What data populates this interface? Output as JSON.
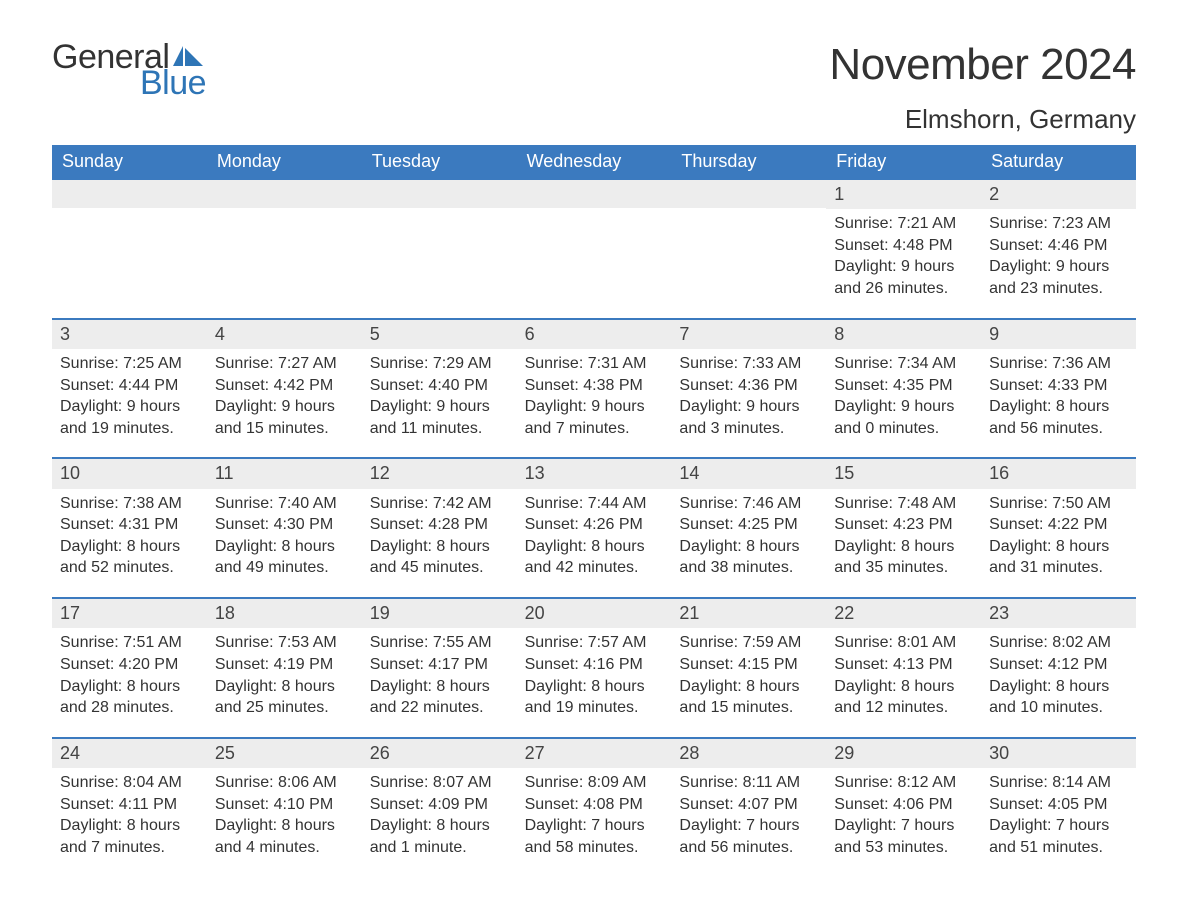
{
  "brand": {
    "word1": "General",
    "word2": "Blue",
    "word1_color": "#333333",
    "word2_color": "#2e75b6",
    "flag_color": "#2e75b6"
  },
  "title": "November 2024",
  "location": "Elmshorn, Germany",
  "colors": {
    "header_bg": "#3b7abf",
    "header_text": "#ffffff",
    "date_bar_bg": "#ededed",
    "week_rule": "#3b7abf",
    "body_text": "#333333",
    "page_bg": "#ffffff"
  },
  "font": {
    "family": "Arial, Helvetica, sans-serif",
    "title_size_pt": 33,
    "location_size_pt": 20,
    "dayhead_size_pt": 14,
    "cell_size_pt": 12,
    "date_size_pt": 14
  },
  "day_headers": [
    "Sunday",
    "Monday",
    "Tuesday",
    "Wednesday",
    "Thursday",
    "Friday",
    "Saturday"
  ],
  "labels": {
    "sunrise": "Sunrise:",
    "sunset": "Sunset:",
    "daylight": "Daylight:"
  },
  "weeks": [
    [
      {
        "blank": true
      },
      {
        "blank": true
      },
      {
        "blank": true
      },
      {
        "blank": true
      },
      {
        "blank": true
      },
      {
        "date": "1",
        "sunrise": "7:21 AM",
        "sunset": "4:48 PM",
        "daylight_l1": "9 hours",
        "daylight_l2": "and 26 minutes."
      },
      {
        "date": "2",
        "sunrise": "7:23 AM",
        "sunset": "4:46 PM",
        "daylight_l1": "9 hours",
        "daylight_l2": "and 23 minutes."
      }
    ],
    [
      {
        "date": "3",
        "sunrise": "7:25 AM",
        "sunset": "4:44 PM",
        "daylight_l1": "9 hours",
        "daylight_l2": "and 19 minutes."
      },
      {
        "date": "4",
        "sunrise": "7:27 AM",
        "sunset": "4:42 PM",
        "daylight_l1": "9 hours",
        "daylight_l2": "and 15 minutes."
      },
      {
        "date": "5",
        "sunrise": "7:29 AM",
        "sunset": "4:40 PM",
        "daylight_l1": "9 hours",
        "daylight_l2": "and 11 minutes."
      },
      {
        "date": "6",
        "sunrise": "7:31 AM",
        "sunset": "4:38 PM",
        "daylight_l1": "9 hours",
        "daylight_l2": "and 7 minutes."
      },
      {
        "date": "7",
        "sunrise": "7:33 AM",
        "sunset": "4:36 PM",
        "daylight_l1": "9 hours",
        "daylight_l2": "and 3 minutes."
      },
      {
        "date": "8",
        "sunrise": "7:34 AM",
        "sunset": "4:35 PM",
        "daylight_l1": "9 hours",
        "daylight_l2": "and 0 minutes."
      },
      {
        "date": "9",
        "sunrise": "7:36 AM",
        "sunset": "4:33 PM",
        "daylight_l1": "8 hours",
        "daylight_l2": "and 56 minutes."
      }
    ],
    [
      {
        "date": "10",
        "sunrise": "7:38 AM",
        "sunset": "4:31 PM",
        "daylight_l1": "8 hours",
        "daylight_l2": "and 52 minutes."
      },
      {
        "date": "11",
        "sunrise": "7:40 AM",
        "sunset": "4:30 PM",
        "daylight_l1": "8 hours",
        "daylight_l2": "and 49 minutes."
      },
      {
        "date": "12",
        "sunrise": "7:42 AM",
        "sunset": "4:28 PM",
        "daylight_l1": "8 hours",
        "daylight_l2": "and 45 minutes."
      },
      {
        "date": "13",
        "sunrise": "7:44 AM",
        "sunset": "4:26 PM",
        "daylight_l1": "8 hours",
        "daylight_l2": "and 42 minutes."
      },
      {
        "date": "14",
        "sunrise": "7:46 AM",
        "sunset": "4:25 PM",
        "daylight_l1": "8 hours",
        "daylight_l2": "and 38 minutes."
      },
      {
        "date": "15",
        "sunrise": "7:48 AM",
        "sunset": "4:23 PM",
        "daylight_l1": "8 hours",
        "daylight_l2": "and 35 minutes."
      },
      {
        "date": "16",
        "sunrise": "7:50 AM",
        "sunset": "4:22 PM",
        "daylight_l1": "8 hours",
        "daylight_l2": "and 31 minutes."
      }
    ],
    [
      {
        "date": "17",
        "sunrise": "7:51 AM",
        "sunset": "4:20 PM",
        "daylight_l1": "8 hours",
        "daylight_l2": "and 28 minutes."
      },
      {
        "date": "18",
        "sunrise": "7:53 AM",
        "sunset": "4:19 PM",
        "daylight_l1": "8 hours",
        "daylight_l2": "and 25 minutes."
      },
      {
        "date": "19",
        "sunrise": "7:55 AM",
        "sunset": "4:17 PM",
        "daylight_l1": "8 hours",
        "daylight_l2": "and 22 minutes."
      },
      {
        "date": "20",
        "sunrise": "7:57 AM",
        "sunset": "4:16 PM",
        "daylight_l1": "8 hours",
        "daylight_l2": "and 19 minutes."
      },
      {
        "date": "21",
        "sunrise": "7:59 AM",
        "sunset": "4:15 PM",
        "daylight_l1": "8 hours",
        "daylight_l2": "and 15 minutes."
      },
      {
        "date": "22",
        "sunrise": "8:01 AM",
        "sunset": "4:13 PM",
        "daylight_l1": "8 hours",
        "daylight_l2": "and 12 minutes."
      },
      {
        "date": "23",
        "sunrise": "8:02 AM",
        "sunset": "4:12 PM",
        "daylight_l1": "8 hours",
        "daylight_l2": "and 10 minutes."
      }
    ],
    [
      {
        "date": "24",
        "sunrise": "8:04 AM",
        "sunset": "4:11 PM",
        "daylight_l1": "8 hours",
        "daylight_l2": "and 7 minutes."
      },
      {
        "date": "25",
        "sunrise": "8:06 AM",
        "sunset": "4:10 PM",
        "daylight_l1": "8 hours",
        "daylight_l2": "and 4 minutes."
      },
      {
        "date": "26",
        "sunrise": "8:07 AM",
        "sunset": "4:09 PM",
        "daylight_l1": "8 hours",
        "daylight_l2": "and 1 minute."
      },
      {
        "date": "27",
        "sunrise": "8:09 AM",
        "sunset": "4:08 PM",
        "daylight_l1": "7 hours",
        "daylight_l2": "and 58 minutes."
      },
      {
        "date": "28",
        "sunrise": "8:11 AM",
        "sunset": "4:07 PM",
        "daylight_l1": "7 hours",
        "daylight_l2": "and 56 minutes."
      },
      {
        "date": "29",
        "sunrise": "8:12 AM",
        "sunset": "4:06 PM",
        "daylight_l1": "7 hours",
        "daylight_l2": "and 53 minutes."
      },
      {
        "date": "30",
        "sunrise": "8:14 AM",
        "sunset": "4:05 PM",
        "daylight_l1": "7 hours",
        "daylight_l2": "and 51 minutes."
      }
    ]
  ]
}
